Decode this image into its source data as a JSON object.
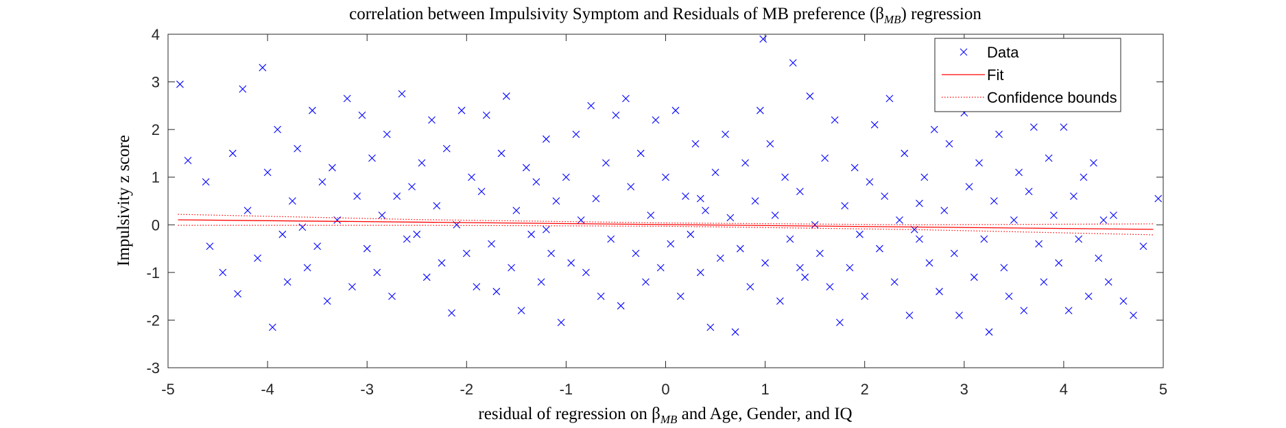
{
  "chart_data": {
    "type": "scatter",
    "title": [
      "correlation between Impulsivity Symptom and Residuals of MB preference (β",
      "MB",
      ") regression"
    ],
    "xlabel": [
      "residual of regression on β",
      "MB",
      " and Age, Gender, and IQ"
    ],
    "ylabel": "Impulsivity z score",
    "xlim": [
      -5,
      5
    ],
    "ylim": [
      -3,
      4
    ],
    "xticks": [
      -5,
      -4,
      -3,
      -2,
      -1,
      0,
      1,
      2,
      3,
      4,
      5
    ],
    "yticks": [
      -3,
      -2,
      -1,
      0,
      1,
      2,
      3,
      4
    ],
    "legend": "northeast",
    "series": [
      {
        "name": "Data",
        "color": "#0000ff",
        "marker": "x",
        "x": [
          -4.88,
          -4.8,
          -4.62,
          -4.58,
          -4.45,
          -4.3,
          -4.25,
          -4.05,
          -3.95,
          -4.35,
          -4.2,
          -4.1,
          -4,
          -3.9,
          -3.85,
          -3.8,
          -3.75,
          -3.7,
          -3.6,
          -3.55,
          -3.5,
          -3.45,
          -3.4,
          -3.35,
          -3.3,
          -3.2,
          -3.15,
          -3.1,
          -3.05,
          -3,
          -2.95,
          -2.9,
          -2.85,
          -2.8,
          -2.75,
          -2.65,
          -2.6,
          -2.55,
          -2.5,
          -2.45,
          -2.4,
          -2.35,
          -2.3,
          -2.25,
          -2.2,
          -2.15,
          -2.1,
          -2.05,
          -2,
          -1.95,
          -1.9,
          -1.85,
          -1.8,
          -1.75,
          -1.7,
          -1.65,
          -1.6,
          -1.55,
          -1.5,
          -1.45,
          -1.4,
          -1.35,
          -1.3,
          -1.25,
          -1.2,
          -1.15,
          -1.1,
          -1.05,
          -1,
          -0.95,
          -0.9,
          -0.85,
          -0.8,
          -0.75,
          -0.7,
          -0.65,
          -0.6,
          -0.55,
          -0.5,
          -0.45,
          -0.4,
          -0.35,
          -0.3,
          -0.25,
          -0.2,
          -0.15,
          -0.1,
          -0.05,
          0,
          0.05,
          0.1,
          0.15,
          0.2,
          0.25,
          0.3,
          0.35,
          0.4,
          0.45,
          0.5,
          0.55,
          0.6,
          0.65,
          0.7,
          0.75,
          0.8,
          0.85,
          0.9,
          0.95,
          0.98,
          1,
          1.05,
          1.1,
          1.15,
          1.2,
          1.25,
          1.28,
          1.35,
          1.4,
          1.45,
          1.5,
          1.55,
          1.6,
          1.65,
          1.7,
          1.75,
          1.8,
          1.85,
          1.9,
          1.95,
          2,
          2.05,
          2.1,
          2.15,
          2.2,
          2.25,
          2.3,
          2.35,
          2.4,
          2.45,
          2.5,
          2.55,
          2.6,
          2.65,
          2.7,
          2.75,
          2.8,
          2.85,
          2.9,
          2.95,
          3,
          3.05,
          3.1,
          3.15,
          3.2,
          3.25,
          3.3,
          3.35,
          3.4,
          3.45,
          3.5,
          3.55,
          3.6,
          3.65,
          3.7,
          3.75,
          3.8,
          3.85,
          3.9,
          3.95,
          4,
          4.05,
          4.1,
          4.15,
          4.2,
          4.25,
          4.3,
          4.35,
          4.4,
          4.45,
          4.5,
          4.6,
          4.7,
          4.8,
          4.95,
          -3.65,
          -2.7,
          -1.2,
          0.35,
          1.35,
          2.55
        ],
        "values": [
          2.95,
          1.35,
          0.9,
          -0.45,
          -1,
          -1.45,
          2.85,
          3.3,
          -2.15,
          1.5,
          0.3,
          -0.7,
          1.1,
          2,
          -0.2,
          -1.2,
          0.5,
          1.6,
          -0.9,
          2.4,
          -0.45,
          0.9,
          -1.6,
          1.2,
          0.1,
          2.65,
          -1.3,
          0.6,
          2.3,
          -0.5,
          1.4,
          -1,
          0.2,
          1.9,
          -1.5,
          2.75,
          -0.3,
          0.8,
          -0.2,
          1.3,
          -1.1,
          2.2,
          0.4,
          -0.8,
          1.6,
          -1.85,
          0,
          2.4,
          -0.6,
          1,
          -1.3,
          0.7,
          2.3,
          -0.4,
          -1.4,
          1.5,
          2.7,
          -0.9,
          0.3,
          -1.8,
          1.2,
          -0.2,
          0.9,
          -1.2,
          1.8,
          -0.6,
          0.5,
          -2.05,
          1,
          -0.8,
          1.9,
          0.1,
          -1,
          2.5,
          0.55,
          -1.5,
          1.3,
          -0.3,
          2.3,
          -1.7,
          2.65,
          0.8,
          -0.6,
          1.5,
          -1.2,
          0.2,
          2.2,
          -0.9,
          1,
          -0.4,
          2.4,
          -1.5,
          0.6,
          -0.2,
          1.7,
          -1,
          0.3,
          -2.15,
          1.1,
          -0.7,
          1.9,
          0.15,
          -2.25,
          -0.5,
          1.3,
          -1.3,
          0.5,
          2.4,
          3.9,
          -0.8,
          1.7,
          0.2,
          -1.6,
          1,
          -0.3,
          3.4,
          0.7,
          -1.1,
          2.7,
          0,
          -0.6,
          1.4,
          -1.3,
          2.2,
          -2.05,
          0.4,
          -0.9,
          1.2,
          -0.2,
          -1.5,
          0.9,
          2.1,
          -0.5,
          0.6,
          2.65,
          -1.2,
          0.1,
          1.5,
          -1.9,
          -0.1,
          0.45,
          1,
          -0.8,
          2,
          -1.4,
          0.3,
          1.7,
          -0.6,
          -1.9,
          2.35,
          0.8,
          -1.1,
          1.3,
          -0.3,
          -2.25,
          0.5,
          1.9,
          -0.9,
          -1.5,
          0.1,
          1.1,
          -1.8,
          0.7,
          2.05,
          -0.4,
          -1.2,
          1.4,
          0.2,
          -0.8,
          2.05,
          -1.8,
          0.6,
          -0.3,
          1,
          -1.5,
          1.3,
          -0.7,
          0.1,
          -1.2,
          0.2,
          -1.6,
          -1.9,
          -0.45,
          0.55,
          -0.05,
          0.6,
          -0.1,
          0.55,
          -0.9,
          -0.3
        ]
      },
      {
        "name": "Fit",
        "color": "#ff0000",
        "line": "solid",
        "x": [
          -4.9,
          4.9
        ],
        "values": [
          0.105,
          -0.095
        ]
      },
      {
        "name": "Confidence bounds",
        "color": "#ff0000",
        "line": "dotted",
        "x": [
          -4.9,
          -2.5,
          0,
          2.5,
          4.9
        ],
        "upper": [
          0.22,
          0.11,
          0.04,
          0.0,
          0.02
        ],
        "lower": [
          -0.01,
          -0.01,
          -0.03,
          -0.1,
          -0.21
        ]
      }
    ]
  }
}
